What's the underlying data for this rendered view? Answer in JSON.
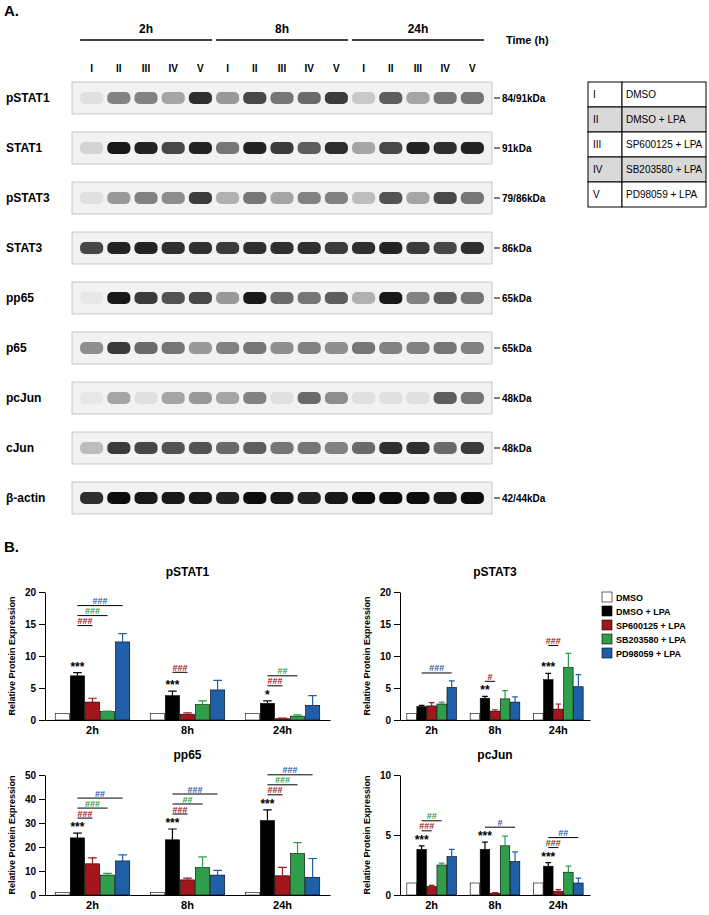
{
  "panel_a": {
    "label": "A.",
    "times": [
      "2h",
      "8h",
      "24h"
    ],
    "time_label": "Time (h)",
    "lanes": [
      "I",
      "II",
      "III",
      "IV",
      "V"
    ],
    "rows": [
      {
        "protein": "pSTAT1",
        "mw": "84/91kDa",
        "bands": [
          0.05,
          0.45,
          0.45,
          0.3,
          0.8,
          0.35,
          0.7,
          0.5,
          0.55,
          0.75,
          0.15,
          0.6,
          0.3,
          0.5,
          0.5
        ]
      },
      {
        "protein": "STAT1",
        "mw": "91kDa",
        "bands": [
          0.1,
          0.9,
          0.85,
          0.7,
          0.85,
          0.5,
          0.85,
          0.75,
          0.6,
          0.8,
          0.3,
          0.7,
          0.85,
          0.8,
          0.85
        ]
      },
      {
        "protein": "pSTAT3",
        "mw": "79/86kDa",
        "bands": [
          0.05,
          0.35,
          0.45,
          0.4,
          0.75,
          0.25,
          0.5,
          0.3,
          0.45,
          0.45,
          0.2,
          0.65,
          0.3,
          0.7,
          0.5
        ]
      },
      {
        "protein": "STAT3",
        "mw": "86kDa",
        "bands": [
          0.7,
          0.85,
          0.85,
          0.8,
          0.8,
          0.75,
          0.8,
          0.8,
          0.8,
          0.75,
          0.8,
          0.85,
          0.75,
          0.7,
          0.8
        ]
      },
      {
        "protein": "pp65",
        "mw": "65kDa",
        "bands": [
          0.02,
          0.9,
          0.75,
          0.65,
          0.7,
          0.35,
          0.9,
          0.55,
          0.5,
          0.6,
          0.25,
          0.9,
          0.45,
          0.6,
          0.5
        ]
      },
      {
        "protein": "p65",
        "mw": "65kDa",
        "bands": [
          0.4,
          0.75,
          0.55,
          0.5,
          0.35,
          0.45,
          0.5,
          0.4,
          0.45,
          0.4,
          0.5,
          0.45,
          0.45,
          0.5,
          0.45
        ]
      },
      {
        "protein": "pcJun",
        "mw": "48kDa",
        "bands": [
          0.02,
          0.3,
          0.05,
          0.3,
          0.35,
          0.3,
          0.45,
          0.05,
          0.55,
          0.4,
          0.05,
          0.05,
          0.05,
          0.6,
          0.5
        ]
      },
      {
        "protein": "cJun",
        "mw": "48kDa",
        "bands": [
          0.2,
          0.75,
          0.7,
          0.65,
          0.65,
          0.55,
          0.6,
          0.5,
          0.5,
          0.45,
          0.55,
          0.8,
          0.8,
          0.55,
          0.75
        ]
      },
      {
        "protein": "β-actin",
        "mw": "42/44kDa",
        "bands": [
          0.8,
          0.95,
          0.9,
          0.9,
          0.9,
          0.85,
          0.95,
          0.9,
          0.85,
          0.9,
          0.95,
          0.95,
          0.95,
          0.9,
          0.95
        ]
      }
    ],
    "legend_table": [
      [
        "I",
        "DMSO"
      ],
      [
        "II",
        "DMSO + LPA"
      ],
      [
        "III",
        "SP600125 + LPA"
      ],
      [
        "IV",
        "SB203580 + LPA"
      ],
      [
        "V",
        "PD98059 + LPA"
      ]
    ]
  },
  "panel_b_label": "B.",
  "chart_data": [
    {
      "type": "bar",
      "title": "pSTAT1",
      "ylabel": "Relative Protein Expression",
      "categories": [
        "2h",
        "8h",
        "24h"
      ],
      "ylim": [
        0,
        20
      ],
      "yticks": [
        0,
        5,
        10,
        15,
        20
      ],
      "series": [
        {
          "color": "#ffffff",
          "values": [
            1,
            1,
            1
          ]
        },
        {
          "color": "#000000",
          "values": [
            6.9,
            3.8,
            2.6
          ],
          "errors": [
            0.5,
            0.7,
            0.4
          ]
        },
        {
          "color": "#a3161b",
          "values": [
            2.8,
            0.9,
            0.2
          ],
          "errors": [
            0.6,
            0.2,
            0.1
          ]
        },
        {
          "color": "#2e9e4a",
          "values": [
            1.3,
            2.4,
            0.6
          ],
          "errors": [
            0.1,
            0.6,
            0.2
          ]
        },
        {
          "color": "#1f5fa8",
          "values": [
            12.2,
            4.7,
            2.3
          ],
          "errors": [
            1.3,
            1.5,
            1.5
          ]
        }
      ],
      "annotations": [
        {
          "text": "***",
          "category": 0,
          "series": 1
        },
        {
          "text": "***",
          "category": 1,
          "series": 1
        },
        {
          "text": "*",
          "category": 2,
          "series": 1
        }
      ],
      "brackets": [
        {
          "text": "###",
          "category": 0,
          "from": 1,
          "to": 2
        },
        {
          "text": "###",
          "category": 0,
          "from": 1,
          "to": 3
        },
        {
          "text": "###",
          "category": 0,
          "from": 1,
          "to": 4
        },
        {
          "text": "###",
          "category": 1,
          "from": 1,
          "to": 2
        },
        {
          "text": "###",
          "category": 2,
          "from": 1,
          "to": 2
        },
        {
          "text": "##",
          "category": 2,
          "from": 1,
          "to": 3
        }
      ]
    },
    {
      "type": "bar",
      "title": "pSTAT3",
      "ylabel": "Relative Protein Expression",
      "categories": [
        "2h",
        "8h",
        "24h"
      ],
      "ylim": [
        0,
        20
      ],
      "yticks": [
        0,
        5,
        10,
        15,
        20
      ],
      "legend": "right",
      "series": [
        {
          "name": "DMSO",
          "color": "#ffffff",
          "values": [
            1,
            1,
            1
          ]
        },
        {
          "name": "DMSO + LPA",
          "color": "#000000",
          "values": [
            2.1,
            3.4,
            6.3
          ],
          "errors": [
            0.2,
            0.3,
            1.0
          ]
        },
        {
          "name": "SP600125 + LPA",
          "color": "#a3161b",
          "values": [
            2.2,
            1.4,
            1.7
          ],
          "errors": [
            0.5,
            0.2,
            0.8
          ]
        },
        {
          "name": "SB203580 + LPA",
          "color": "#2e9e4a",
          "values": [
            2.5,
            3.3,
            8.2
          ],
          "errors": [
            0.3,
            1.3,
            2.2
          ]
        },
        {
          "name": "PD98059 + LPA",
          "color": "#1f5fa8",
          "values": [
            5.1,
            2.8,
            5.2
          ],
          "errors": [
            1.0,
            0.8,
            1.9
          ]
        }
      ],
      "annotations": [
        {
          "text": "**",
          "category": 1,
          "series": 1
        },
        {
          "text": "***",
          "category": 2,
          "series": 1
        }
      ],
      "brackets": [
        {
          "text": "###",
          "category": 0,
          "from": 1,
          "to": 4
        },
        {
          "text": "#",
          "category": 1,
          "from": 1,
          "to": 2
        },
        {
          "text": "###",
          "category": 2,
          "from": 1,
          "to": 2
        }
      ]
    },
    {
      "type": "bar",
      "title": "pp65",
      "ylabel": "Relative Protein Expression",
      "categories": [
        "2h",
        "8h",
        "24h"
      ],
      "ylim": [
        0,
        50
      ],
      "yticks": [
        0,
        10,
        20,
        30,
        40,
        50
      ],
      "series": [
        {
          "color": "#ffffff",
          "values": [
            1,
            1,
            1
          ]
        },
        {
          "color": "#000000",
          "values": [
            23.8,
            23,
            31
          ],
          "errors": [
            2,
            4.5,
            4.5
          ]
        },
        {
          "color": "#a3161b",
          "values": [
            13,
            6.3,
            8
          ],
          "errors": [
            2.5,
            0.7,
            3.5
          ]
        },
        {
          "color": "#2e9e4a",
          "values": [
            8.3,
            11.4,
            17.3
          ],
          "errors": [
            0.7,
            4.5,
            4.5
          ]
        },
        {
          "color": "#1f5fa8",
          "values": [
            14.2,
            8.3,
            7.4
          ],
          "errors": [
            2.5,
            2,
            7.8
          ]
        }
      ],
      "annotations": [
        {
          "text": "***",
          "category": 0,
          "series": 1
        },
        {
          "text": "***",
          "category": 1,
          "series": 1
        },
        {
          "text": "***",
          "category": 2,
          "series": 1
        }
      ],
      "brackets": [
        {
          "text": "###",
          "category": 0,
          "from": 1,
          "to": 2
        },
        {
          "text": "###",
          "category": 0,
          "from": 1,
          "to": 3
        },
        {
          "text": "##",
          "category": 0,
          "from": 1,
          "to": 4
        },
        {
          "text": "###",
          "category": 1,
          "from": 1,
          "to": 2
        },
        {
          "text": "##",
          "category": 1,
          "from": 1,
          "to": 3
        },
        {
          "text": "###",
          "category": 1,
          "from": 1,
          "to": 4
        },
        {
          "text": "###",
          "category": 2,
          "from": 1,
          "to": 2
        },
        {
          "text": "###",
          "category": 2,
          "from": 1,
          "to": 3
        },
        {
          "text": "###",
          "category": 2,
          "from": 1,
          "to": 4
        }
      ]
    },
    {
      "type": "bar",
      "title": "pcJun",
      "ylabel": "Relative Protein Expression",
      "categories": [
        "2h",
        "8h",
        "24h"
      ],
      "ylim": [
        0,
        10
      ],
      "yticks": [
        0,
        5,
        10
      ],
      "series": [
        {
          "color": "#ffffff",
          "values": [
            1,
            1,
            1
          ]
        },
        {
          "color": "#000000",
          "values": [
            3.8,
            3.8,
            2.4
          ],
          "errors": [
            0.3,
            0.6,
            0.3
          ]
        },
        {
          "color": "#a3161b",
          "values": [
            0.7,
            0.15,
            0.3
          ],
          "errors": [
            0.1,
            0.05,
            0.15
          ]
        },
        {
          "color": "#2e9e4a",
          "values": [
            2.5,
            4.1,
            1.9
          ],
          "errors": [
            0.15,
            0.8,
            0.5
          ]
        },
        {
          "color": "#1f5fa8",
          "values": [
            3.2,
            2.8,
            1.0
          ],
          "errors": [
            0.6,
            0.8,
            0.4
          ]
        }
      ],
      "annotations": [
        {
          "text": "***",
          "category": 0,
          "series": 1
        },
        {
          "text": "***",
          "category": 1,
          "series": 1
        },
        {
          "text": "***",
          "category": 2,
          "series": 1
        }
      ],
      "brackets": [
        {
          "text": "###",
          "category": 0,
          "from": 1,
          "to": 2
        },
        {
          "text": "##",
          "category": 0,
          "from": 1,
          "to": 3
        },
        {
          "text": "#",
          "category": 1,
          "from": 1,
          "to": 4
        },
        {
          "text": "###",
          "category": 2,
          "from": 1,
          "to": 2
        },
        {
          "text": "##",
          "category": 2,
          "from": 1,
          "to": 4
        }
      ]
    }
  ]
}
